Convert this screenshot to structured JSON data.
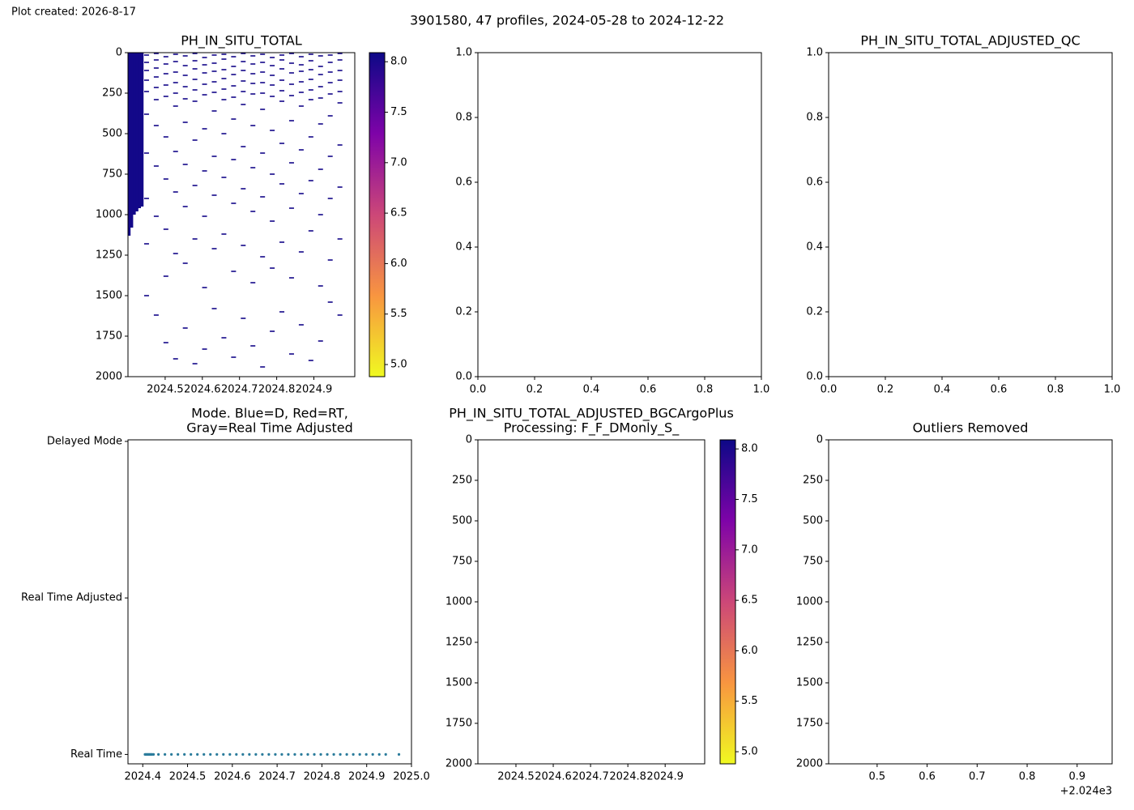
{
  "header": {
    "created": "Plot created: 2026-8-17",
    "title": "3901580, 47 profiles, 2024-05-28 to 2024-12-22"
  },
  "chart_data": [
    {
      "type": "pcolor",
      "title": [
        "PH_IN_SITU_TOTAL"
      ],
      "y_inverted": true,
      "xlim": [
        2024.4,
        2025.01
      ],
      "ylim": [
        0,
        2000
      ],
      "xticks": [
        2024.5,
        2024.6,
        2024.7,
        2024.8,
        2024.9
      ],
      "yticks": [
        0,
        250,
        500,
        750,
        1000,
        1250,
        1500,
        1750,
        2000
      ],
      "value": 8.05,
      "colorbar": {
        "colormap": "plasma_r",
        "lim": [
          4.88,
          8.09
        ],
        "ticks": [
          {
            "value": 5,
            "label": "5.0"
          },
          5.5,
          {
            "value": 6,
            "label": "6.0"
          },
          6.5,
          {
            "value": 7,
            "label": "7.0"
          },
          7.5,
          {
            "value": 8,
            "label": "8.0"
          }
        ]
      },
      "profiles": [
        {
          "x": 2024.403,
          "depth_range": [
            0,
            1130
          ]
        },
        {
          "x": 2024.41,
          "depth_range": [
            0,
            1080
          ]
        },
        {
          "x": 2024.417,
          "depth_range": [
            0,
            1000
          ]
        },
        {
          "x": 2024.424,
          "depth_range": [
            0,
            980
          ]
        },
        {
          "x": 2024.431,
          "depth_range": [
            0,
            960
          ]
        },
        {
          "x": 2024.438,
          "depth_range": [
            0,
            950
          ]
        },
        {
          "x": 2024.45,
          "depths": [
            15,
            60,
            110,
            170,
            240,
            380,
            620,
            900,
            1180,
            1500
          ]
        },
        {
          "x": 2024.476,
          "depths": [
            5,
            45,
            95,
            150,
            215,
            290,
            450,
            700,
            1010,
            1620
          ]
        },
        {
          "x": 2024.502,
          "depths": [
            25,
            70,
            130,
            200,
            270,
            520,
            780,
            1090,
            1380,
            1790
          ]
        },
        {
          "x": 2024.528,
          "depths": [
            10,
            55,
            120,
            185,
            250,
            330,
            610,
            860,
            1240,
            1890
          ]
        },
        {
          "x": 2024.554,
          "depths": [
            20,
            80,
            140,
            210,
            285,
            430,
            690,
            950,
            1300,
            1700
          ]
        },
        {
          "x": 2024.58,
          "depths": [
            5,
            50,
            100,
            165,
            230,
            300,
            540,
            820,
            1150,
            1920
          ]
        },
        {
          "x": 2024.606,
          "depths": [
            30,
            75,
            125,
            195,
            260,
            470,
            730,
            1010,
            1450,
            1830
          ]
        },
        {
          "x": 2024.632,
          "depths": [
            15,
            65,
            115,
            180,
            245,
            360,
            640,
            880,
            1210,
            1580
          ]
        },
        {
          "x": 2024.658,
          "depths": [
            10,
            40,
            105,
            160,
            225,
            290,
            500,
            770,
            1120,
            1760
          ]
        },
        {
          "x": 2024.684,
          "depths": [
            25,
            85,
            135,
            205,
            275,
            410,
            660,
            930,
            1350,
            1880
          ]
        },
        {
          "x": 2024.71,
          "depths": [
            5,
            55,
            110,
            175,
            240,
            320,
            580,
            840,
            1190,
            1640
          ]
        },
        {
          "x": 2024.736,
          "depths": [
            20,
            70,
            130,
            190,
            255,
            450,
            710,
            980,
            1420,
            1810
          ]
        },
        {
          "x": 2024.762,
          "depths": [
            10,
            60,
            120,
            185,
            250,
            350,
            620,
            890,
            1260,
            1940
          ]
        },
        {
          "x": 2024.788,
          "depths": [
            30,
            80,
            140,
            200,
            270,
            480,
            750,
            1040,
            1330,
            1720
          ]
        },
        {
          "x": 2024.814,
          "depths": [
            15,
            45,
            100,
            170,
            235,
            300,
            560,
            810,
            1170,
            1600
          ]
        },
        {
          "x": 2024.84,
          "depths": [
            5,
            65,
            125,
            195,
            265,
            420,
            680,
            960,
            1390,
            1860
          ]
        },
        {
          "x": 2024.866,
          "depths": [
            25,
            75,
            115,
            180,
            245,
            330,
            600,
            870,
            1230,
            1680
          ]
        },
        {
          "x": 2024.892,
          "depths": [
            10,
            50,
            105,
            165,
            230,
            290,
            520,
            790,
            1100,
            1900
          ]
        },
        {
          "x": 2024.918,
          "depths": [
            20,
            85,
            135,
            210,
            280,
            440,
            720,
            1000,
            1440,
            1780
          ]
        },
        {
          "x": 2024.944,
          "depths": [
            15,
            60,
            120,
            185,
            255,
            390,
            640,
            900,
            1280,
            1540
          ]
        },
        {
          "x": 2024.97,
          "depths": [
            5,
            45,
            110,
            170,
            240,
            310,
            570,
            830,
            1150,
            1620
          ]
        }
      ]
    },
    {
      "type": "empty",
      "xlim": [
        0,
        1
      ],
      "ylim": [
        0,
        1
      ],
      "xticks": [
        {
          "value": 0,
          "label": "0.0"
        },
        0.2,
        0.4,
        0.6,
        0.8,
        {
          "value": 1,
          "label": "1.0"
        }
      ],
      "yticks": [
        {
          "value": 0,
          "label": "0.0"
        },
        0.2,
        0.4,
        0.6,
        0.8,
        {
          "value": 1,
          "label": "1.0"
        }
      ]
    },
    {
      "type": "empty",
      "title": [
        "PH_IN_SITU_TOTAL_ADJUSTED_QC"
      ],
      "xlim": [
        0,
        1
      ],
      "ylim": [
        0,
        1
      ],
      "xticks": [
        {
          "value": 0,
          "label": "0.0"
        },
        0.2,
        0.4,
        0.6,
        0.8,
        {
          "value": 1,
          "label": "1.0"
        }
      ],
      "yticks": [
        {
          "value": 0,
          "label": "0.0"
        },
        0.2,
        0.4,
        0.6,
        0.8,
        {
          "value": 1,
          "label": "1.0"
        }
      ]
    },
    {
      "type": "scatter",
      "title": [
        "Mode. Blue=D, Red=RT,",
        "Gray=Real Time Adjusted"
      ],
      "color": "#2a7b9b",
      "xlim": [
        2024.367,
        2025.0
      ],
      "ylim": [
        -0.06,
        2.01
      ],
      "xticks": [
        2024.4,
        2024.5,
        2024.6,
        2024.7,
        2024.8,
        2024.9,
        {
          "value": 2025,
          "label": "2025.0"
        }
      ],
      "yticks": [
        {
          "value": 0,
          "label": "Real Time"
        },
        {
          "value": 1,
          "label": "Real Time Adjusted"
        },
        {
          "value": 2,
          "label": "Delayed Mode"
        }
      ],
      "x": [
        2024.405,
        2024.407,
        2024.409,
        2024.411,
        2024.413,
        2024.415,
        2024.417,
        2024.419,
        2024.421,
        2024.424,
        2024.435,
        2024.4495,
        2024.464,
        2024.4785,
        2024.493,
        2024.5075,
        2024.522,
        2024.5365,
        2024.551,
        2024.5655,
        2024.58,
        2024.5945,
        2024.609,
        2024.6235,
        2024.638,
        2024.6525,
        2024.667,
        2024.6815,
        2024.696,
        2024.7105,
        2024.725,
        2024.7395,
        2024.754,
        2024.7685,
        2024.783,
        2024.7975,
        2024.812,
        2024.8265,
        2024.841,
        2024.8555,
        2024.87,
        2024.8845,
        2024.899,
        2024.9135,
        2024.928,
        2024.9425,
        2024.972
      ],
      "values": [
        0,
        0,
        0,
        0,
        0,
        0,
        0,
        0,
        0,
        0,
        0,
        0,
        0,
        0,
        0,
        0,
        0,
        0,
        0,
        0,
        0,
        0,
        0,
        0,
        0,
        0,
        0,
        0,
        0,
        0,
        0,
        0,
        0,
        0,
        0,
        0,
        0,
        0,
        0,
        0,
        0,
        0,
        0,
        0,
        0,
        0,
        0
      ]
    },
    {
      "type": "pcolor",
      "title": [
        "PH_IN_SITU_TOTAL_ADJUSTED_BGCArgoPlus",
        "Processing: F_F_DMonly_S_"
      ],
      "y_inverted": true,
      "xlim": [
        2024.398,
        2025.006
      ],
      "ylim": [
        0,
        2000
      ],
      "xticks": [
        2024.5,
        2024.6,
        2024.7,
        2024.8,
        2024.9
      ],
      "yticks": [
        0,
        250,
        500,
        750,
        1000,
        1250,
        1500,
        1750,
        2000
      ],
      "colorbar": {
        "colormap": "plasma_r",
        "lim": [
          4.88,
          8.09
        ],
        "ticks": [
          {
            "value": 5,
            "label": "5.0"
          },
          5.5,
          {
            "value": 6,
            "label": "6.0"
          },
          6.5,
          {
            "value": 7,
            "label": "7.0"
          },
          7.5,
          {
            "value": 8,
            "label": "8.0"
          }
        ]
      },
      "profiles": []
    },
    {
      "type": "empty",
      "title": [
        "Outliers Removed"
      ],
      "y_inverted": true,
      "xlim": [
        0.403,
        0.97
      ],
      "ylim": [
        0,
        2000
      ],
      "xticks": [
        0.5,
        0.6,
        0.7,
        0.8,
        0.9
      ],
      "x_offset_label": "+2.024e3",
      "yticks": [
        0,
        250,
        500,
        750,
        1000,
        1250,
        1500,
        1750,
        2000
      ]
    }
  ]
}
